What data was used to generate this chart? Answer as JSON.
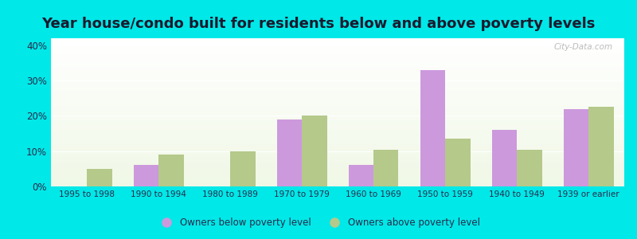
{
  "title": "Year house/condo built for residents below and above poverty levels",
  "categories": [
    "1995 to 1998",
    "1990 to 1994",
    "1980 to 1989",
    "1970 to 1979",
    "1960 to 1969",
    "1950 to 1959",
    "1940 to 1949",
    "1939 or earlier"
  ],
  "below_poverty": [
    0,
    6,
    0,
    19,
    6,
    33,
    16,
    22
  ],
  "above_poverty": [
    5,
    9,
    10,
    20,
    10.5,
    13.5,
    10.5,
    22.5
  ],
  "below_color": "#cc99dd",
  "above_color": "#b5c98a",
  "ylim": [
    0,
    42
  ],
  "yticks": [
    0,
    10,
    20,
    30,
    40
  ],
  "legend_below": "Owners below poverty level",
  "legend_above": "Owners above poverty level",
  "outer_bg": "#00e8e8",
  "bar_width": 0.35,
  "title_fontsize": 13,
  "watermark": "City-Data.com"
}
